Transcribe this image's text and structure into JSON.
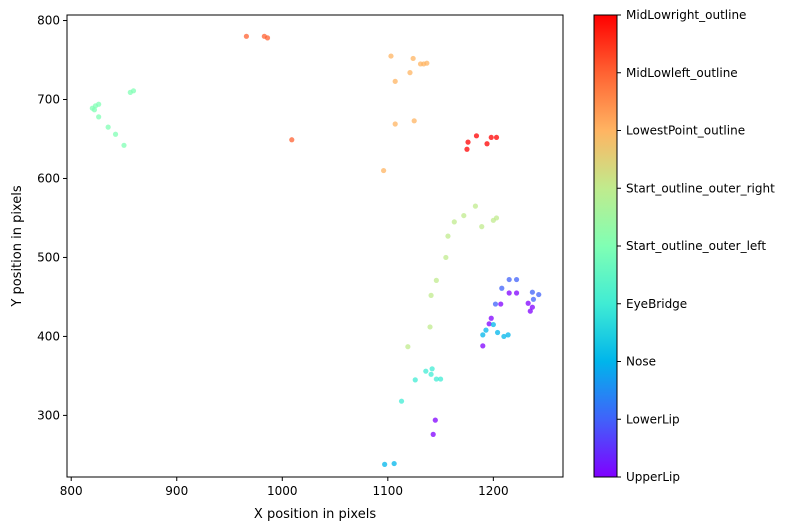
{
  "chart_data": {
    "type": "scatter",
    "title": "",
    "xlabel": "X position in pixels",
    "ylabel": "Y position in pixels",
    "xlim": [
      796,
      1266
    ],
    "ylim": [
      807,
      222
    ],
    "y_inverted": true,
    "xticks": [
      800,
      900,
      1000,
      1100,
      1200
    ],
    "yticks": [
      300,
      400,
      500,
      600,
      700,
      800
    ],
    "colorbar": {
      "labels": [
        "UpperLip",
        "LowerLip",
        "Nose",
        "EyeBridge",
        "Start_outline_outer_left",
        "Start_outline_outer_right",
        "LowestPoint_outline",
        "MidLowleft_outline",
        "MidLowright_outline"
      ],
      "colors": [
        "#8000ff",
        "#4062fa",
        "#00b5eb",
        "#40ecd4",
        "#80ffb4",
        "#c0eb8d",
        "#ffb462",
        "#ff6232",
        "#ff0000"
      ]
    },
    "series": [
      {
        "name": "UpperLip",
        "color": "#8000ff",
        "points": [
          [
            1143,
            276
          ],
          [
            1145,
            294
          ],
          [
            1190,
            388
          ],
          [
            1196,
            416
          ],
          [
            1198,
            423
          ],
          [
            1207,
            441
          ],
          [
            1215,
            455
          ],
          [
            1222,
            455
          ],
          [
            1235,
            432
          ],
          [
            1237,
            437
          ],
          [
            1233,
            442
          ]
        ]
      },
      {
        "name": "LowerLip",
        "color": "#4062fa",
        "points": [
          [
            1202,
            441
          ],
          [
            1208,
            461
          ],
          [
            1215,
            472
          ],
          [
            1222,
            472
          ],
          [
            1237,
            456
          ],
          [
            1238,
            447
          ],
          [
            1243,
            453
          ]
        ]
      },
      {
        "name": "Nose",
        "color": "#00b5eb",
        "points": [
          [
            1097,
            238
          ],
          [
            1106,
            239
          ],
          [
            1190,
            402
          ],
          [
            1193,
            408
          ],
          [
            1200,
            415
          ],
          [
            1204,
            405
          ],
          [
            1210,
            400
          ],
          [
            1214,
            402
          ]
        ]
      },
      {
        "name": "EyeBridge",
        "color": "#40ecd4",
        "points": [
          [
            1113,
            318
          ],
          [
            1126,
            345
          ],
          [
            1136,
            356
          ],
          [
            1141,
            352
          ],
          [
            1142,
            359
          ],
          [
            1146,
            346
          ],
          [
            1150,
            346
          ]
        ]
      },
      {
        "name": "Start_outline_outer_left",
        "color": "#80ffb4",
        "points": [
          [
            820,
            689
          ],
          [
            822,
            687
          ],
          [
            823,
            692
          ],
          [
            826,
            694
          ],
          [
            826,
            678
          ],
          [
            835,
            665
          ],
          [
            842,
            656
          ],
          [
            850,
            642
          ],
          [
            856,
            709
          ],
          [
            859,
            711
          ]
        ]
      },
      {
        "name": "Start_outline_outer_right",
        "color": "#c0eb8d",
        "points": [
          [
            1119,
            387
          ],
          [
            1140,
            412
          ],
          [
            1141,
            452
          ],
          [
            1146,
            471
          ],
          [
            1155,
            500
          ],
          [
            1157,
            527
          ],
          [
            1163,
            545
          ],
          [
            1172,
            553
          ],
          [
            1183,
            565
          ],
          [
            1189,
            539
          ],
          [
            1200,
            547
          ],
          [
            1203,
            550
          ]
        ]
      },
      {
        "name": "LowestPoint_outline",
        "color": "#ffb462",
        "points": [
          [
            1096,
            610
          ],
          [
            1107,
            669
          ],
          [
            1125,
            673
          ],
          [
            1107,
            723
          ],
          [
            1103,
            755
          ],
          [
            1121,
            734
          ],
          [
            1124,
            752
          ],
          [
            1131,
            745
          ],
          [
            1134,
            745
          ],
          [
            1137,
            746
          ]
        ]
      },
      {
        "name": "MidLowleft_outline",
        "color": "#ff6232",
        "points": [
          [
            1009,
            649
          ],
          [
            966,
            780
          ],
          [
            983,
            780
          ],
          [
            986,
            778
          ]
        ]
      },
      {
        "name": "MidLowright_outline",
        "color": "#ff0000",
        "points": [
          [
            1175,
            637
          ],
          [
            1176,
            646
          ],
          [
            1184,
            654
          ],
          [
            1194,
            644
          ],
          [
            1198,
            652
          ],
          [
            1203,
            652
          ]
        ]
      }
    ]
  }
}
